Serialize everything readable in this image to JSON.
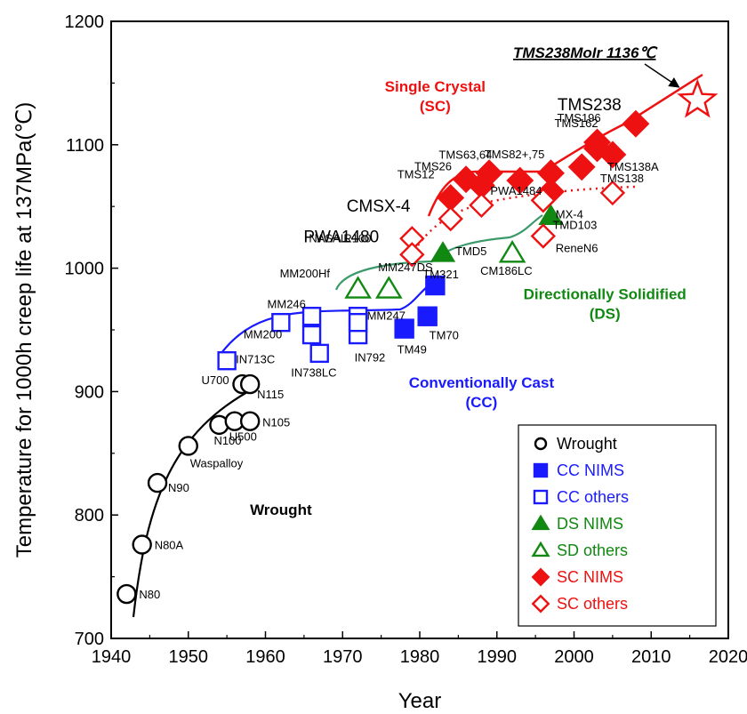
{
  "chart_data": {
    "type": "scatter",
    "title": "",
    "xlabel": "Year",
    "ylabel": "Temperature for 1000h creep life at 137MPa(℃)",
    "xlim": [
      1940,
      2020
    ],
    "ylim": [
      700,
      1200
    ],
    "xticks": [
      "1940",
      "1950",
      "1960",
      "1970",
      "1980",
      "1990",
      "2000",
      "2010",
      "2020"
    ],
    "yticks": [
      "700",
      "800",
      "900",
      "1000",
      "1100",
      "1200"
    ],
    "grid": false,
    "legend_position": "bottom-right",
    "colors": {
      "wrought": "#000000",
      "cc": "#1a1aff",
      "ds": "#118811",
      "sc": "#ee1111",
      "ds_line": "#3a9a6a"
    },
    "legend": [
      {
        "label": "Wrought",
        "marker": "circle-open",
        "color": "#000000"
      },
      {
        "label": "CC NIMS",
        "marker": "square-filled",
        "color": "#1a1aff"
      },
      {
        "label": "CC others",
        "marker": "square-open",
        "color": "#1a1aff"
      },
      {
        "label": "DS NIMS",
        "marker": "triangle-filled",
        "color": "#118811"
      },
      {
        "label": "SD others",
        "marker": "triangle-open",
        "color": "#118811"
      },
      {
        "label": "SC NIMS",
        "marker": "diamond-filled",
        "color": "#ee1111"
      },
      {
        "label": "SC others",
        "marker": "diamond-open",
        "color": "#ee1111"
      }
    ],
    "group_labels": [
      {
        "lines": [
          "Wrought"
        ],
        "x": 1962,
        "y": 800,
        "color": "#000000"
      },
      {
        "lines": [
          "Conventionally Cast",
          "(CC)"
        ],
        "x": 1988,
        "y": 903,
        "color": "#1a1aff"
      },
      {
        "lines": [
          "Directionally Solidified",
          "(DS)"
        ],
        "x": 2004,
        "y": 975,
        "color": "#118811"
      },
      {
        "lines": [
          "Single Crystal",
          "(SC)"
        ],
        "x": 1982,
        "y": 1143,
        "color": "#ee1111"
      }
    ],
    "annotation": {
      "text": "TMS238MoIr 1136℃",
      "x": 2016,
      "y": 1136
    },
    "series": [
      {
        "name": "Wrought",
        "marker": "circle-open",
        "color": "#000000",
        "points": [
          {
            "x": 1942,
            "y": 736,
            "label": "N80"
          },
          {
            "x": 1944,
            "y": 776,
            "label": "N80A"
          },
          {
            "x": 1946,
            "y": 826,
            "label": "N90"
          },
          {
            "x": 1950,
            "y": 856,
            "label": "Waspalloy"
          },
          {
            "x": 1954,
            "y": 873,
            "label": "N100"
          },
          {
            "x": 1956,
            "y": 876,
            "label": "U500"
          },
          {
            "x": 1958,
            "y": 876,
            "label": "N105"
          },
          {
            "x": 1957,
            "y": 906,
            "label": "U700"
          },
          {
            "x": 1958,
            "y": 906,
            "label": "N115"
          }
        ]
      },
      {
        "name": "CC NIMS",
        "marker": "square-filled",
        "color": "#1a1aff",
        "points": [
          {
            "x": 1978,
            "y": 951,
            "label": "TM49"
          },
          {
            "x": 1981,
            "y": 961,
            "label": "TM70"
          },
          {
            "x": 1982,
            "y": 986,
            "label": "TM321"
          }
        ]
      },
      {
        "name": "CC others",
        "marker": "square-open",
        "color": "#1a1aff",
        "points": [
          {
            "x": 1955,
            "y": 925,
            "label": "IN713C"
          },
          {
            "x": 1962,
            "y": 956,
            "label": "MM200"
          },
          {
            "x": 1966,
            "y": 961,
            "label": "MM246"
          },
          {
            "x": 1966,
            "y": 946,
            "label": ""
          },
          {
            "x": 1967,
            "y": 931,
            "label": "IN738LC"
          },
          {
            "x": 1972,
            "y": 961,
            "label": ""
          },
          {
            "x": 1972,
            "y": 946,
            "label": "IN792"
          },
          {
            "x": 1972,
            "y": 956,
            "label": "MM247"
          }
        ]
      },
      {
        "name": "DS NIMS",
        "marker": "triangle-filled",
        "color": "#118811",
        "points": [
          {
            "x": 1983,
            "y": 1012,
            "label": "TMD5"
          },
          {
            "x": 1997,
            "y": 1042,
            "label": "TMD103"
          }
        ]
      },
      {
        "name": "SD others",
        "marker": "triangle-open",
        "color": "#118811",
        "points": [
          {
            "x": 1972,
            "y": 983,
            "label": "MM200Hf"
          },
          {
            "x": 1976,
            "y": 983,
            "label": "MM247DS"
          },
          {
            "x": 1992,
            "y": 1012,
            "label": "CM186LC"
          }
        ]
      },
      {
        "name": "SC NIMS",
        "marker": "diamond-filled",
        "color": "#ee1111",
        "points": [
          {
            "x": 1984,
            "y": 1057,
            "label": "TMS12"
          },
          {
            "x": 1986,
            "y": 1072,
            "label": "TMS26"
          },
          {
            "x": 1988,
            "y": 1067,
            "label": "TMS63,64"
          },
          {
            "x": 1989,
            "y": 1077,
            "label": ""
          },
          {
            "x": 1993,
            "y": 1071,
            "label": "TMS82+,75"
          },
          {
            "x": 1997,
            "y": 1062,
            "label": ""
          },
          {
            "x": 1997,
            "y": 1077,
            "label": ""
          },
          {
            "x": 2001,
            "y": 1082,
            "label": ""
          },
          {
            "x": 2003,
            "y": 1097,
            "label": "TMS196"
          },
          {
            "x": 2003,
            "y": 1102,
            "label": "TMS162"
          },
          {
            "x": 2005,
            "y": 1092,
            "label": "TMS138A"
          },
          {
            "x": 2008,
            "y": 1117,
            "label": "TMS238"
          }
        ]
      },
      {
        "name": "SC others",
        "marker": "diamond-open",
        "color": "#ee1111",
        "points": [
          {
            "x": 1979,
            "y": 1024,
            "label": "NASAIR100"
          },
          {
            "x": 1979,
            "y": 1011,
            "label": "PWA1480"
          },
          {
            "x": 1984,
            "y": 1040,
            "label": "CMSX-4"
          },
          {
            "x": 1988,
            "y": 1051,
            "label": "PWA1484"
          },
          {
            "x": 1996,
            "y": 1026,
            "label": "ReneN6"
          },
          {
            "x": 1996,
            "y": 1055,
            "label": "MX-4"
          },
          {
            "x": 2005,
            "y": 1061,
            "label": "TMS138"
          }
        ]
      },
      {
        "name": "TMS238MoIr",
        "marker": "star-open",
        "color": "#ee1111",
        "points": [
          {
            "x": 2016,
            "y": 1136,
            "label": ""
          }
        ]
      }
    ]
  }
}
